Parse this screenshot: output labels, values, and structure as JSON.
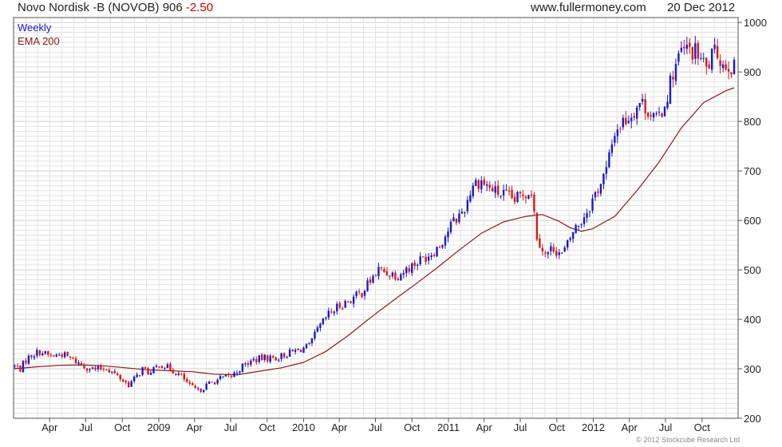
{
  "header": {
    "title": "Novo Nordisk -B (NOVOB)",
    "price": "906",
    "change": "-2.50",
    "site": "www.fullermoney.com",
    "date": "20 Dec 2012"
  },
  "legend": {
    "period": "Weekly",
    "indicator": "EMA 200"
  },
  "copyright": "© 2012 Stockcube Research Ltd",
  "colors": {
    "up": "#1a1ad0",
    "down": "#d81818",
    "ema": "#8b1a1a",
    "grid": "#e2e2e2",
    "frame": "#555555",
    "change": "#cc0000",
    "period_text": "#1a1ad0",
    "indicator_text": "#8b1a1a"
  },
  "chart_data": {
    "type": "line",
    "title": "Novo Nordisk -B (NOVOB) 906 -2.50",
    "xlabel": "",
    "ylabel": "",
    "ylim": [
      200,
      1010
    ],
    "xlim": [
      "2008-01-01",
      "2012-12-31"
    ],
    "grid": true,
    "legend_position": "top-left",
    "y_ticks": [
      200,
      300,
      400,
      500,
      600,
      700,
      800,
      900,
      1000
    ],
    "x_ticks": [
      {
        "label": "Apr",
        "date": "2008-04-01"
      },
      {
        "label": "Jul",
        "date": "2008-07-01"
      },
      {
        "label": "Oct",
        "date": "2008-10-01"
      },
      {
        "label": "2009",
        "date": "2009-01-01"
      },
      {
        "label": "Apr",
        "date": "2009-04-01"
      },
      {
        "label": "Jul",
        "date": "2009-07-01"
      },
      {
        "label": "Oct",
        "date": "2009-10-01"
      },
      {
        "label": "2010",
        "date": "2010-01-01"
      },
      {
        "label": "Apr",
        "date": "2010-04-01"
      },
      {
        "label": "Jul",
        "date": "2010-07-01"
      },
      {
        "label": "Oct",
        "date": "2010-10-01"
      },
      {
        "label": "2011",
        "date": "2011-01-01"
      },
      {
        "label": "Apr",
        "date": "2011-04-01"
      },
      {
        "label": "Jul",
        "date": "2011-07-01"
      },
      {
        "label": "Oct",
        "date": "2011-10-01"
      },
      {
        "label": "2012",
        "date": "2012-01-01"
      },
      {
        "label": "Apr",
        "date": "2012-04-01"
      },
      {
        "label": "Jul",
        "date": "2012-07-01"
      },
      {
        "label": "Oct",
        "date": "2012-10-01"
      }
    ],
    "series": [
      {
        "name": "Weekly",
        "kind": "candlestick",
        "anchors": [
          [
            "2008-01-04",
            305
          ],
          [
            "2008-01-18",
            300
          ],
          [
            "2008-02-01",
            318
          ],
          [
            "2008-02-15",
            328
          ],
          [
            "2008-03-07",
            335
          ],
          [
            "2008-04-04",
            325
          ],
          [
            "2008-05-02",
            330
          ],
          [
            "2008-05-30",
            318
          ],
          [
            "2008-06-27",
            305
          ],
          [
            "2008-07-25",
            298
          ],
          [
            "2008-08-22",
            302
          ],
          [
            "2008-09-19",
            285
          ],
          [
            "2008-10-17",
            268
          ],
          [
            "2008-11-07",
            285
          ],
          [
            "2008-11-21",
            300
          ],
          [
            "2008-12-12",
            290
          ],
          [
            "2009-01-02",
            310
          ],
          [
            "2009-01-30",
            300
          ],
          [
            "2009-02-27",
            285
          ],
          [
            "2009-03-20",
            265
          ],
          [
            "2009-04-10",
            255
          ],
          [
            "2009-05-08",
            270
          ],
          [
            "2009-06-05",
            280
          ],
          [
            "2009-07-03",
            285
          ],
          [
            "2009-07-31",
            305
          ],
          [
            "2009-08-28",
            318
          ],
          [
            "2009-09-25",
            322
          ],
          [
            "2009-10-23",
            322
          ],
          [
            "2009-11-20",
            330
          ],
          [
            "2009-12-18",
            338
          ],
          [
            "2010-01-15",
            345
          ],
          [
            "2010-02-05",
            378
          ],
          [
            "2010-03-05",
            410
          ],
          [
            "2010-04-02",
            428
          ],
          [
            "2010-04-30",
            440
          ],
          [
            "2010-05-28",
            455
          ],
          [
            "2010-06-18",
            478
          ],
          [
            "2010-07-09",
            500
          ],
          [
            "2010-07-30",
            495
          ],
          [
            "2010-08-27",
            490
          ],
          [
            "2010-09-24",
            505
          ],
          [
            "2010-10-22",
            520
          ],
          [
            "2010-11-19",
            535
          ],
          [
            "2010-12-10",
            550
          ],
          [
            "2011-01-07",
            590
          ],
          [
            "2011-01-28",
            610
          ],
          [
            "2011-02-11",
            625
          ],
          [
            "2011-03-04",
            675
          ],
          [
            "2011-03-25",
            680
          ],
          [
            "2011-04-15",
            665
          ],
          [
            "2011-05-06",
            655
          ],
          [
            "2011-05-27",
            650
          ],
          [
            "2011-06-17",
            640
          ],
          [
            "2011-07-08",
            655
          ],
          [
            "2011-07-29",
            660
          ],
          [
            "2011-08-12",
            570
          ],
          [
            "2011-09-02",
            530
          ],
          [
            "2011-09-23",
            545
          ],
          [
            "2011-10-14",
            530
          ],
          [
            "2011-10-28",
            550
          ],
          [
            "2011-11-11",
            578
          ],
          [
            "2011-12-02",
            600
          ],
          [
            "2011-12-23",
            630
          ],
          [
            "2012-01-13",
            665
          ],
          [
            "2012-02-03",
            700
          ],
          [
            "2012-02-24",
            780
          ],
          [
            "2012-03-16",
            800
          ],
          [
            "2012-04-06",
            815
          ],
          [
            "2012-04-27",
            840
          ],
          [
            "2012-05-18",
            825
          ],
          [
            "2012-06-08",
            800
          ],
          [
            "2012-06-29",
            835
          ],
          [
            "2012-07-20",
            900
          ],
          [
            "2012-08-10",
            940
          ],
          [
            "2012-08-31",
            945
          ],
          [
            "2012-09-21",
            935
          ],
          [
            "2012-10-12",
            905
          ],
          [
            "2012-10-26",
            930
          ],
          [
            "2012-11-09",
            940
          ],
          [
            "2012-11-23",
            915
          ],
          [
            "2012-12-07",
            918
          ],
          [
            "2012-12-21",
            906
          ]
        ]
      },
      {
        "name": "EMA 200",
        "kind": "line",
        "values": [
          [
            "2008-01-04",
            300
          ],
          [
            "2008-02-29",
            304
          ],
          [
            "2008-04-25",
            307
          ],
          [
            "2008-06-20",
            308
          ],
          [
            "2008-08-15",
            306
          ],
          [
            "2008-10-10",
            302
          ],
          [
            "2008-12-05",
            298
          ],
          [
            "2009-01-30",
            296
          ],
          [
            "2009-03-27",
            294
          ],
          [
            "2009-05-22",
            289
          ],
          [
            "2009-07-17",
            288
          ],
          [
            "2009-09-11",
            295
          ],
          [
            "2009-11-06",
            302
          ],
          [
            "2010-01-01",
            313
          ],
          [
            "2010-02-26",
            335
          ],
          [
            "2010-04-23",
            367
          ],
          [
            "2010-06-18",
            403
          ],
          [
            "2010-08-13",
            437
          ],
          [
            "2010-10-08",
            470
          ],
          [
            "2010-12-03",
            504
          ],
          [
            "2011-01-28",
            540
          ],
          [
            "2011-03-25",
            574
          ],
          [
            "2011-05-20",
            597
          ],
          [
            "2011-07-15",
            608
          ],
          [
            "2011-08-26",
            612
          ],
          [
            "2011-10-07",
            598
          ],
          [
            "2011-11-04",
            585
          ],
          [
            "2011-12-02",
            578
          ],
          [
            "2011-12-30",
            583
          ],
          [
            "2012-02-24",
            608
          ],
          [
            "2012-04-20",
            660
          ],
          [
            "2012-06-15",
            718
          ],
          [
            "2012-08-10",
            787
          ],
          [
            "2012-10-05",
            838
          ],
          [
            "2012-11-30",
            862
          ],
          [
            "2012-12-21",
            868
          ]
        ]
      }
    ]
  }
}
